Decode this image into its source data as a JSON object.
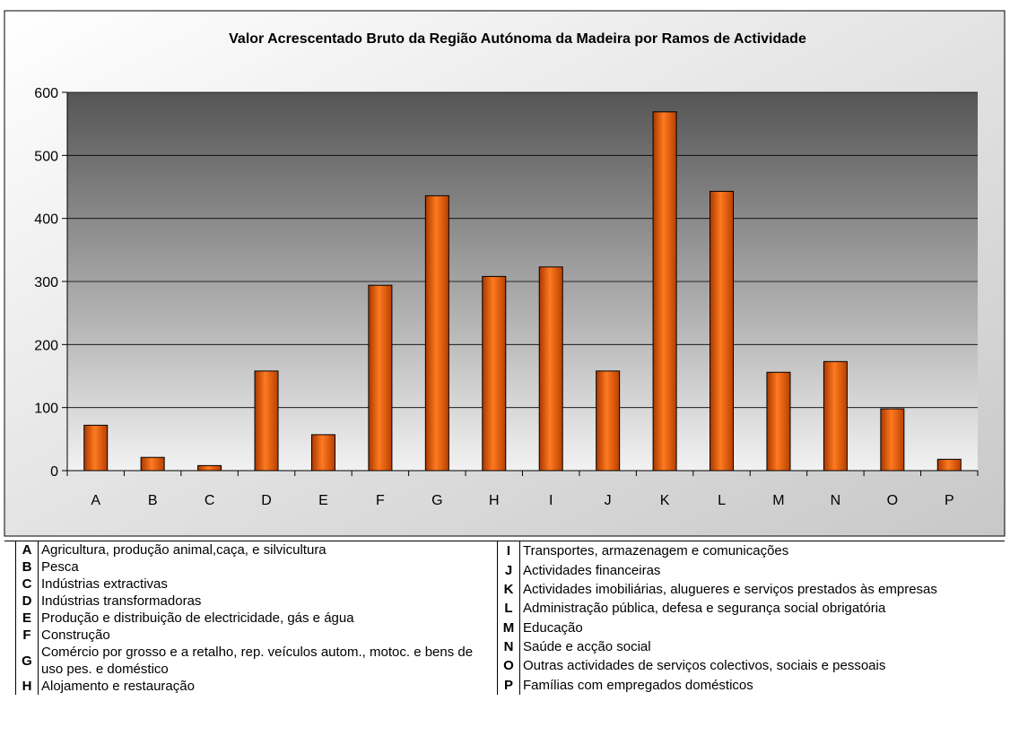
{
  "chart_data": {
    "type": "bar",
    "title": "Valor Acrescentado Bruto da Região Autónoma da Madeira por Ramos de Actividade",
    "categories": [
      "A",
      "B",
      "C",
      "D",
      "E",
      "F",
      "G",
      "H",
      "I",
      "J",
      "K",
      "L",
      "M",
      "N",
      "O",
      "P"
    ],
    "values": [
      72,
      21,
      8,
      158,
      57,
      294,
      436,
      308,
      323,
      158,
      569,
      443,
      156,
      173,
      98,
      18
    ],
    "color": "#f06010",
    "ylim": [
      0,
      600
    ],
    "yticks": [
      0,
      100,
      200,
      300,
      400,
      500,
      600
    ],
    "grid": true
  },
  "legend_table": {
    "left": [
      {
        "code": "A",
        "text": "Agricultura, produção animal,caça, e silvicultura"
      },
      {
        "code": "B",
        "text": "Pesca"
      },
      {
        "code": "C",
        "text": "Indústrias extractivas"
      },
      {
        "code": "D",
        "text": "Indústrias transformadoras"
      },
      {
        "code": "E",
        "text": "Produção e distribuição de electricidade, gás e água"
      },
      {
        "code": "F",
        "text": "Construção"
      },
      {
        "code": "G",
        "text": "Comércio por grosso e a retalho, rep. veículos autom., motoc. e bens de uso pes. e doméstico"
      },
      {
        "code": "H",
        "text": "Alojamento e restauração"
      }
    ],
    "right": [
      {
        "code": "I",
        "text": "Transportes, armazenagem e comunicações"
      },
      {
        "code": "J",
        "text": "Actividades financeiras"
      },
      {
        "code": "K",
        "text": "Actividades imobiliárias, alugueres e serviços prestados às empresas"
      },
      {
        "code": "L",
        "text": "Administração pública, defesa e segurança social obrigatória"
      },
      {
        "code": "M",
        "text": "Educação"
      },
      {
        "code": "N",
        "text": "Saúde e acção social"
      },
      {
        "code": "O",
        "text": "Outras actividades de serviços colectivos, sociais e pessoais"
      },
      {
        "code": "P",
        "text": "Famílias com empregados domésticos"
      }
    ]
  }
}
